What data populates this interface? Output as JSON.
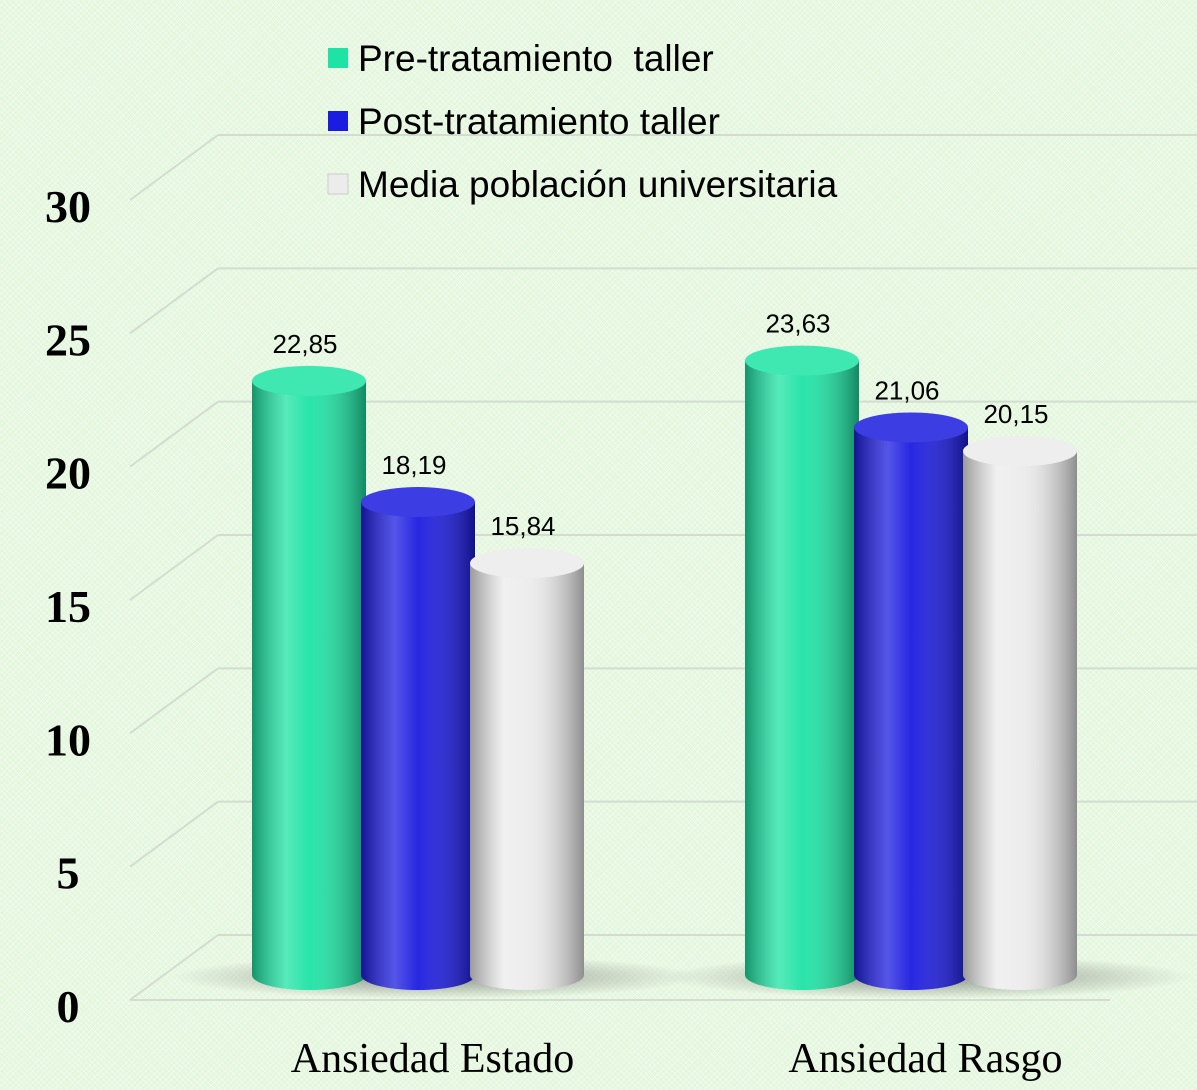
{
  "chart_data": {
    "type": "bar3d",
    "categories": [
      "Ansiedad Estado",
      "Ansiedad Rasgo"
    ],
    "series": [
      {
        "name": "Pre-tratamiento  taller",
        "color": "#1ee3a4",
        "values": [
          22.85,
          23.63
        ],
        "value_labels": [
          "22,85",
          "23,63"
        ]
      },
      {
        "name": "Post-tratamiento taller",
        "color": "#1c1ce0",
        "values": [
          18.19,
          21.06
        ],
        "value_labels": [
          "18,19",
          "21,06"
        ]
      },
      {
        "name": "Media población universitaria",
        "color": "#ececec",
        "values": [
          15.84,
          20.15
        ],
        "value_labels": [
          "15,84",
          "20,15"
        ]
      }
    ],
    "ylim": [
      0,
      30
    ],
    "yticks": [
      0,
      5,
      10,
      15,
      20,
      25,
      30
    ],
    "grid": true
  }
}
